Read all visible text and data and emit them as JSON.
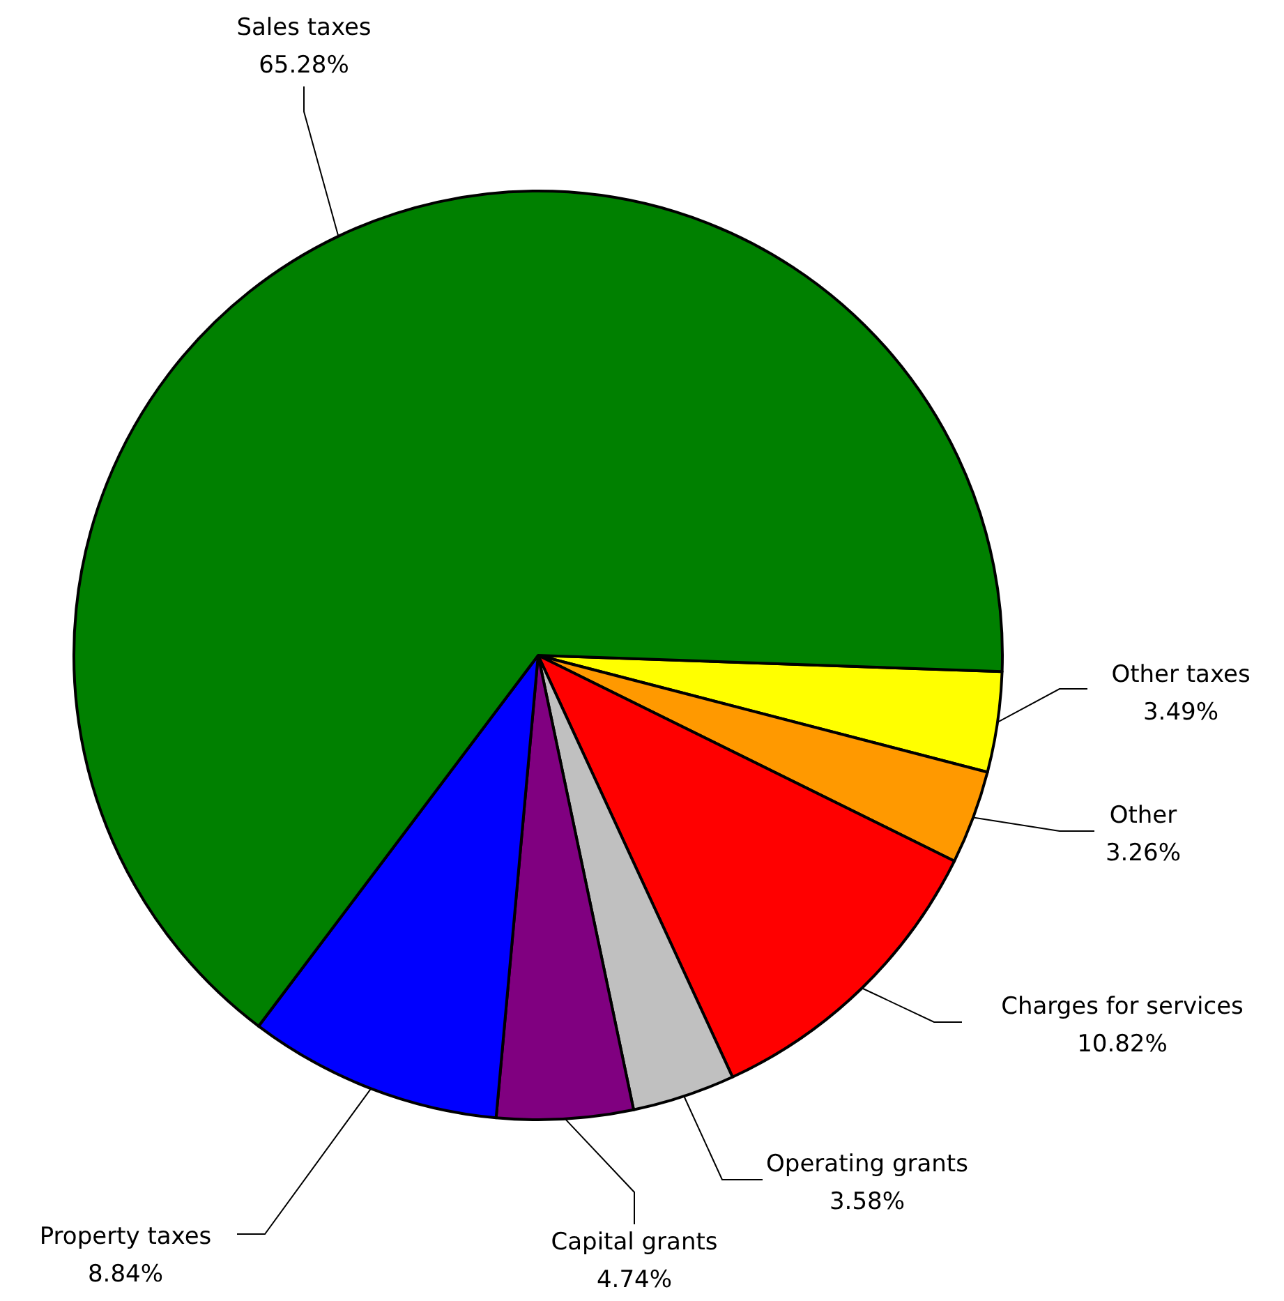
{
  "chart_data": {
    "type": "pie",
    "categories": [
      "Other taxes",
      "Other",
      "Charges for services",
      "Operating grants",
      "Capital grants",
      "Property taxes",
      "Sales taxes"
    ],
    "values": [
      3.49,
      3.26,
      10.82,
      3.58,
      4.74,
      8.84,
      65.28
    ],
    "colors": [
      "#ffff00",
      "#ff9900",
      "#ff0000",
      "#c0c0c0",
      "#800080",
      "#0000ff",
      "#008000"
    ],
    "value_labels": [
      "3.49%",
      "3.26%",
      "10.82%",
      "3.58%",
      "4.74%",
      "8.84%",
      "65.28%"
    ]
  }
}
